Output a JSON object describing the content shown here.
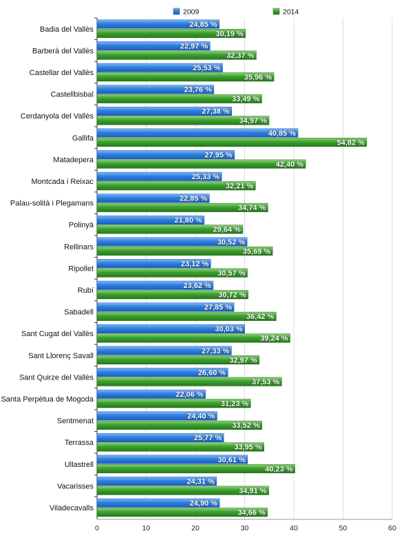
{
  "chart_data": {
    "type": "bar",
    "orientation": "horizontal",
    "categories": [
      "Badia del Vallès",
      "Barberà del Vallès",
      "Castellar del Vallès",
      "Castellbisbal",
      "Cerdanyola del Vallès",
      "Gallifa",
      "Matadepera",
      "Montcada i Reixac",
      "Palau-solità i Plegamans",
      "Polinyà",
      "Rellinars",
      "Ripollet",
      "Rubí",
      "Sabadell",
      "Sant Cugat del Vallès",
      "Sant Llorenç Savall",
      "Sant Quirze del Vallès",
      "Santa Perpètua de Mogoda",
      "Sentmenat",
      "Terrassa",
      "Ullastrell",
      "Vacarisses",
      "Viladecavalls"
    ],
    "series": [
      {
        "name": "2009",
        "color": "#2f7fe0",
        "values": [
          24.85,
          22.97,
          25.53,
          23.76,
          27.38,
          40.85,
          27.95,
          25.33,
          22.85,
          21.8,
          30.52,
          23.12,
          23.62,
          27.85,
          30.03,
          27.33,
          26.6,
          22.06,
          24.4,
          25.77,
          30.61,
          24.31,
          24.9
        ],
        "labels": [
          "24,85 %",
          "22,97 %",
          "25,53 %",
          "23,76 %",
          "27,38 %",
          "40,85 %",
          "27,95 %",
          "25,33 %",
          "22,85 %",
          "21,80 %",
          "30,52 %",
          "23,12 %",
          "23,62 %",
          "27,85 %",
          "30,03 %",
          "27,33 %",
          "26,60 %",
          "22,06 %",
          "24,40 %",
          "25,77 %",
          "30,61 %",
          "24,31 %",
          "24,90 %"
        ]
      },
      {
        "name": "2014",
        "color": "#3ba02e",
        "values": [
          30.19,
          32.37,
          35.96,
          33.49,
          34.97,
          54.82,
          42.4,
          32.21,
          34.74,
          29.64,
          35.69,
          30.57,
          30.72,
          36.42,
          39.24,
          32.97,
          37.53,
          31.23,
          33.52,
          33.95,
          40.23,
          34.91,
          34.66
        ],
        "labels": [
          "30,19 %",
          "32,37 %",
          "35,96 %",
          "33,49 %",
          "34,97 %",
          "54,82 %",
          "42,40 %",
          "32,21 %",
          "34,74 %",
          "29,64 %",
          "35,69 %",
          "30,57 %",
          "30,72 %",
          "36,42 %",
          "39,24 %",
          "32,97 %",
          "37,53 %",
          "31,23 %",
          "33,52 %",
          "33,95 %",
          "40,23 %",
          "34,91 %",
          "34,66 %"
        ]
      }
    ],
    "xlim": [
      0,
      60
    ],
    "xticks": [
      "0",
      "10",
      "20",
      "30",
      "40",
      "50",
      "60"
    ],
    "grid": true,
    "legend": "top"
  }
}
